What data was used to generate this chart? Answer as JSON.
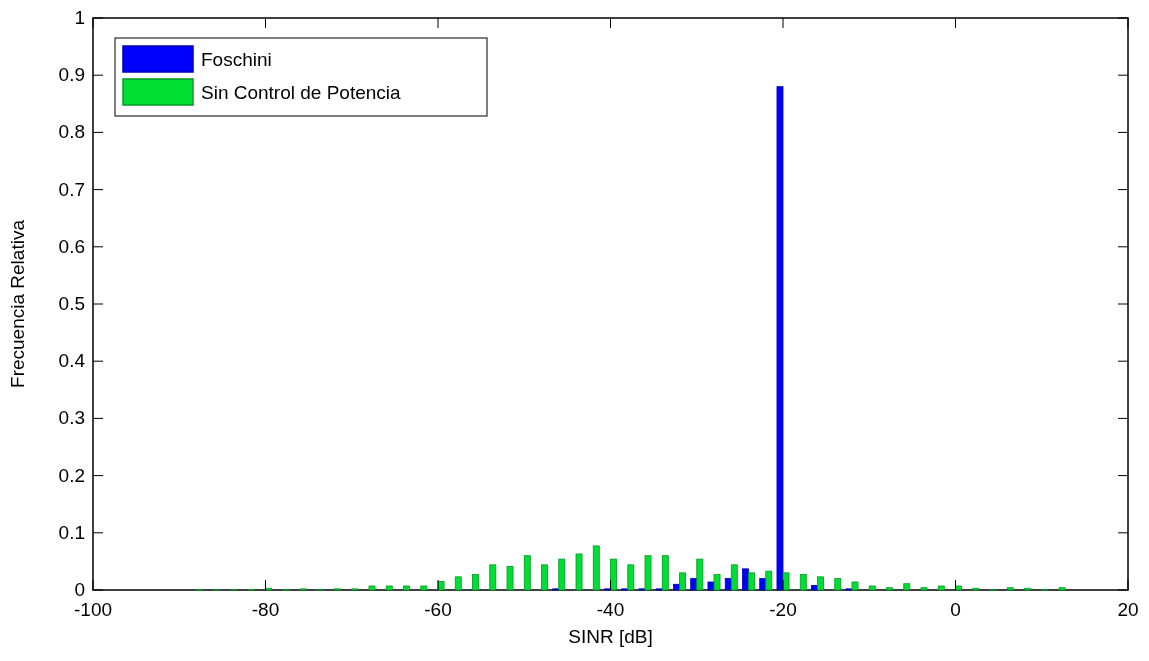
{
  "chart_data": {
    "type": "bar",
    "xlabel": "SINR [dB]",
    "ylabel": "Frecuencia Relativa",
    "x": [
      -88,
      -86,
      -84,
      -82,
      -80,
      -78,
      -76,
      -74,
      -72,
      -70,
      -68,
      -66,
      -64,
      -62,
      -60,
      -58,
      -56,
      -54,
      -52,
      -50,
      -48,
      -46,
      -44,
      -42,
      -40,
      -38,
      -36,
      -34,
      -32,
      -30,
      -28,
      -26,
      -24,
      -22,
      -20,
      -18,
      -16,
      -14,
      -12,
      -10,
      -8,
      -6,
      -4,
      -2,
      0,
      2,
      4,
      6,
      8,
      10,
      12
    ],
    "series": [
      {
        "name": "Foschini",
        "color": "#0000ff",
        "values": [
          0,
          0,
          0,
          0,
          0,
          0,
          0,
          0,
          0,
          0,
          0,
          0,
          0,
          0,
          0,
          0,
          0,
          0,
          0,
          0,
          0,
          0.002,
          0,
          0,
          0.002,
          0.002,
          0.002,
          0.002,
          0.01,
          0.02,
          0.014,
          0.02,
          0.037,
          0.02,
          0.88,
          0,
          0.008,
          0,
          0.002,
          0,
          0,
          0,
          0,
          0,
          0,
          0,
          0,
          0,
          0,
          0,
          0
        ]
      },
      {
        "name": "Sin Control de Potencia",
        "color": "#00dd33",
        "values": [
          0.001,
          0.001,
          0.001,
          0.001,
          0.003,
          0.001,
          0.002,
          0.001,
          0.002,
          0.002,
          0.007,
          0.007,
          0.007,
          0.007,
          0.015,
          0.023,
          0.027,
          0.044,
          0.041,
          0.06,
          0.044,
          0.054,
          0.063,
          0.077,
          0.054,
          0.044,
          0.06,
          0.06,
          0.03,
          0.054,
          0.027,
          0.044,
          0.03,
          0.033,
          0.03,
          0.027,
          0.023,
          0.02,
          0.014,
          0.007,
          0.004,
          0.011,
          0.004,
          0.007,
          0.007,
          0.003,
          0.001,
          0.004,
          0.003,
          0.001,
          0.004
        ]
      }
    ],
    "xlim": [
      -100,
      20
    ],
    "xticks": [
      -100,
      -80,
      -60,
      -40,
      -20,
      0,
      20
    ],
    "ylim": [
      0,
      1
    ],
    "yticks": [
      0,
      0.1,
      0.2,
      0.3,
      0.4,
      0.5,
      0.6,
      0.7,
      0.8,
      0.9,
      1
    ],
    "legend": "top left"
  }
}
